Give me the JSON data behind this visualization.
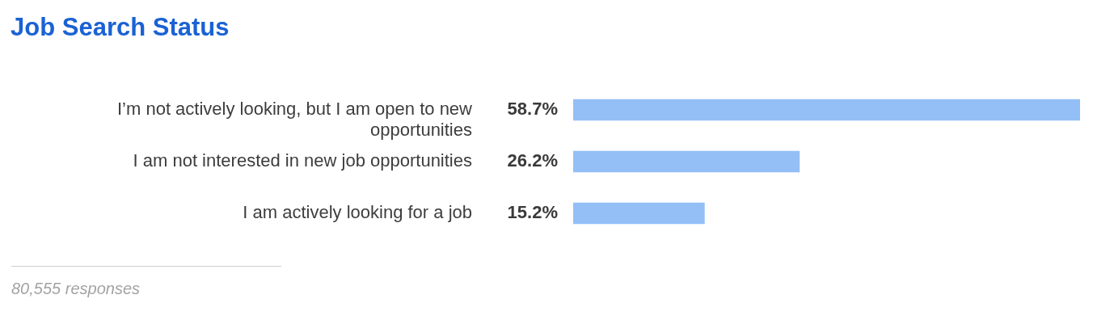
{
  "chart_data": {
    "type": "bar",
    "orientation": "horizontal",
    "title": "Job Search Status",
    "categories": [
      "I’m not actively looking, but I am open to new opportunities",
      "I am not interested in new job opportunities",
      "I am actively looking for a job"
    ],
    "values": [
      58.7,
      26.2,
      15.2
    ],
    "value_labels": [
      "58.7%",
      "26.2%",
      "15.2%"
    ],
    "color": "#93bff6",
    "annotations": [
      "80,555 responses"
    ]
  }
}
